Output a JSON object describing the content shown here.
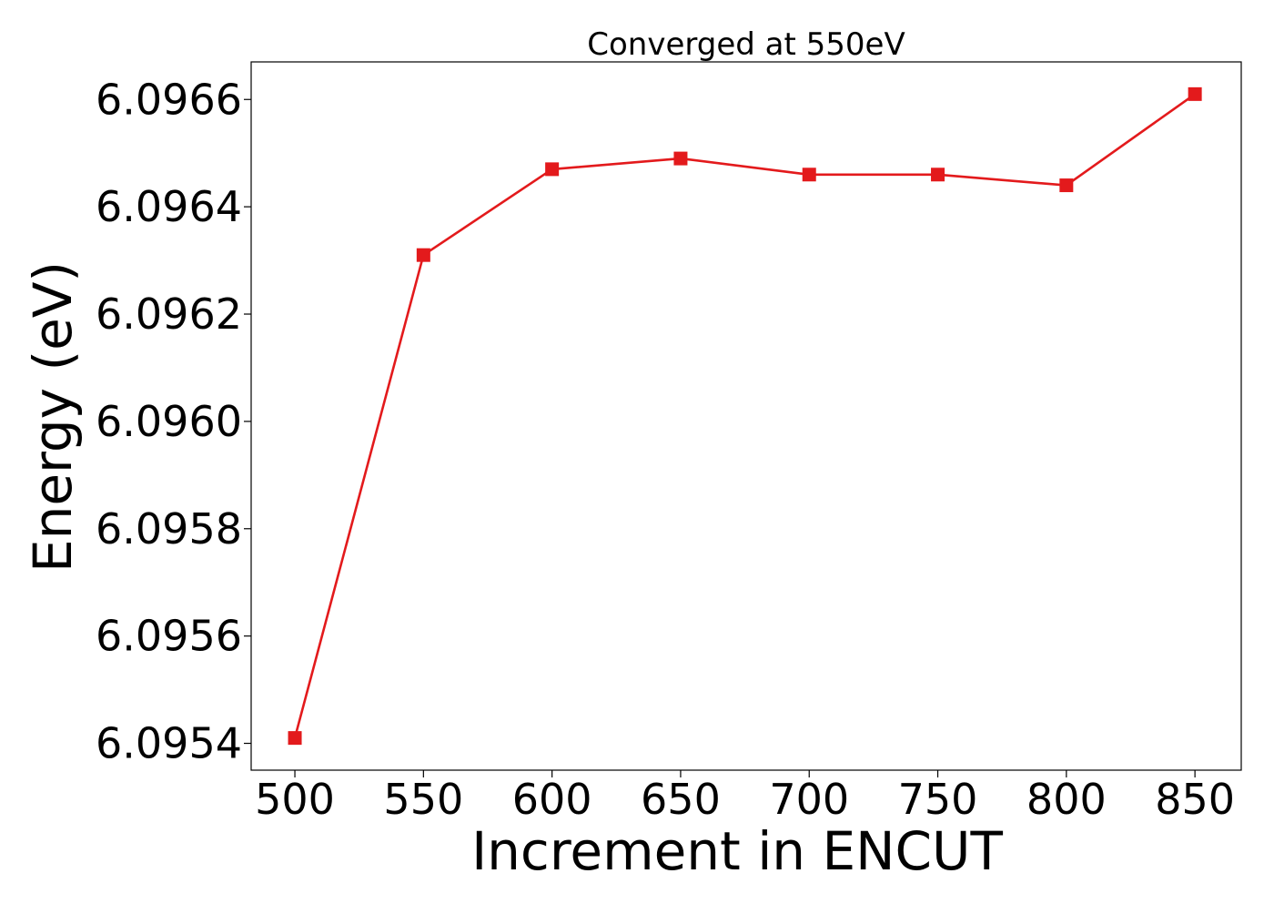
{
  "chart_data": {
    "type": "line",
    "title": "Converged at 550eV",
    "xlabel": "Increment in ENCUT",
    "ylabel": "Energy (eV)",
    "x": [
      500,
      550,
      600,
      650,
      700,
      750,
      800,
      850
    ],
    "series": [
      {
        "values": [
          6.09541,
          6.09631,
          6.09647,
          6.09649,
          6.09646,
          6.09646,
          6.09644,
          6.09661
        ],
        "color": "#e31a1c",
        "marker": "square"
      }
    ],
    "xlim": [
      483,
      868
    ],
    "ylim": [
      6.09535,
      6.09667
    ],
    "xticks": [
      500,
      550,
      600,
      650,
      700,
      750,
      800,
      850
    ],
    "yticks": [
      6.0954,
      6.0956,
      6.0958,
      6.096,
      6.0962,
      6.0964,
      6.0966
    ],
    "ytick_labels": [
      "6.0954",
      "6.0956",
      "6.0958",
      "6.0960",
      "6.0962",
      "6.0964",
      "6.0966"
    ],
    "grid": false,
    "legend": "none"
  }
}
